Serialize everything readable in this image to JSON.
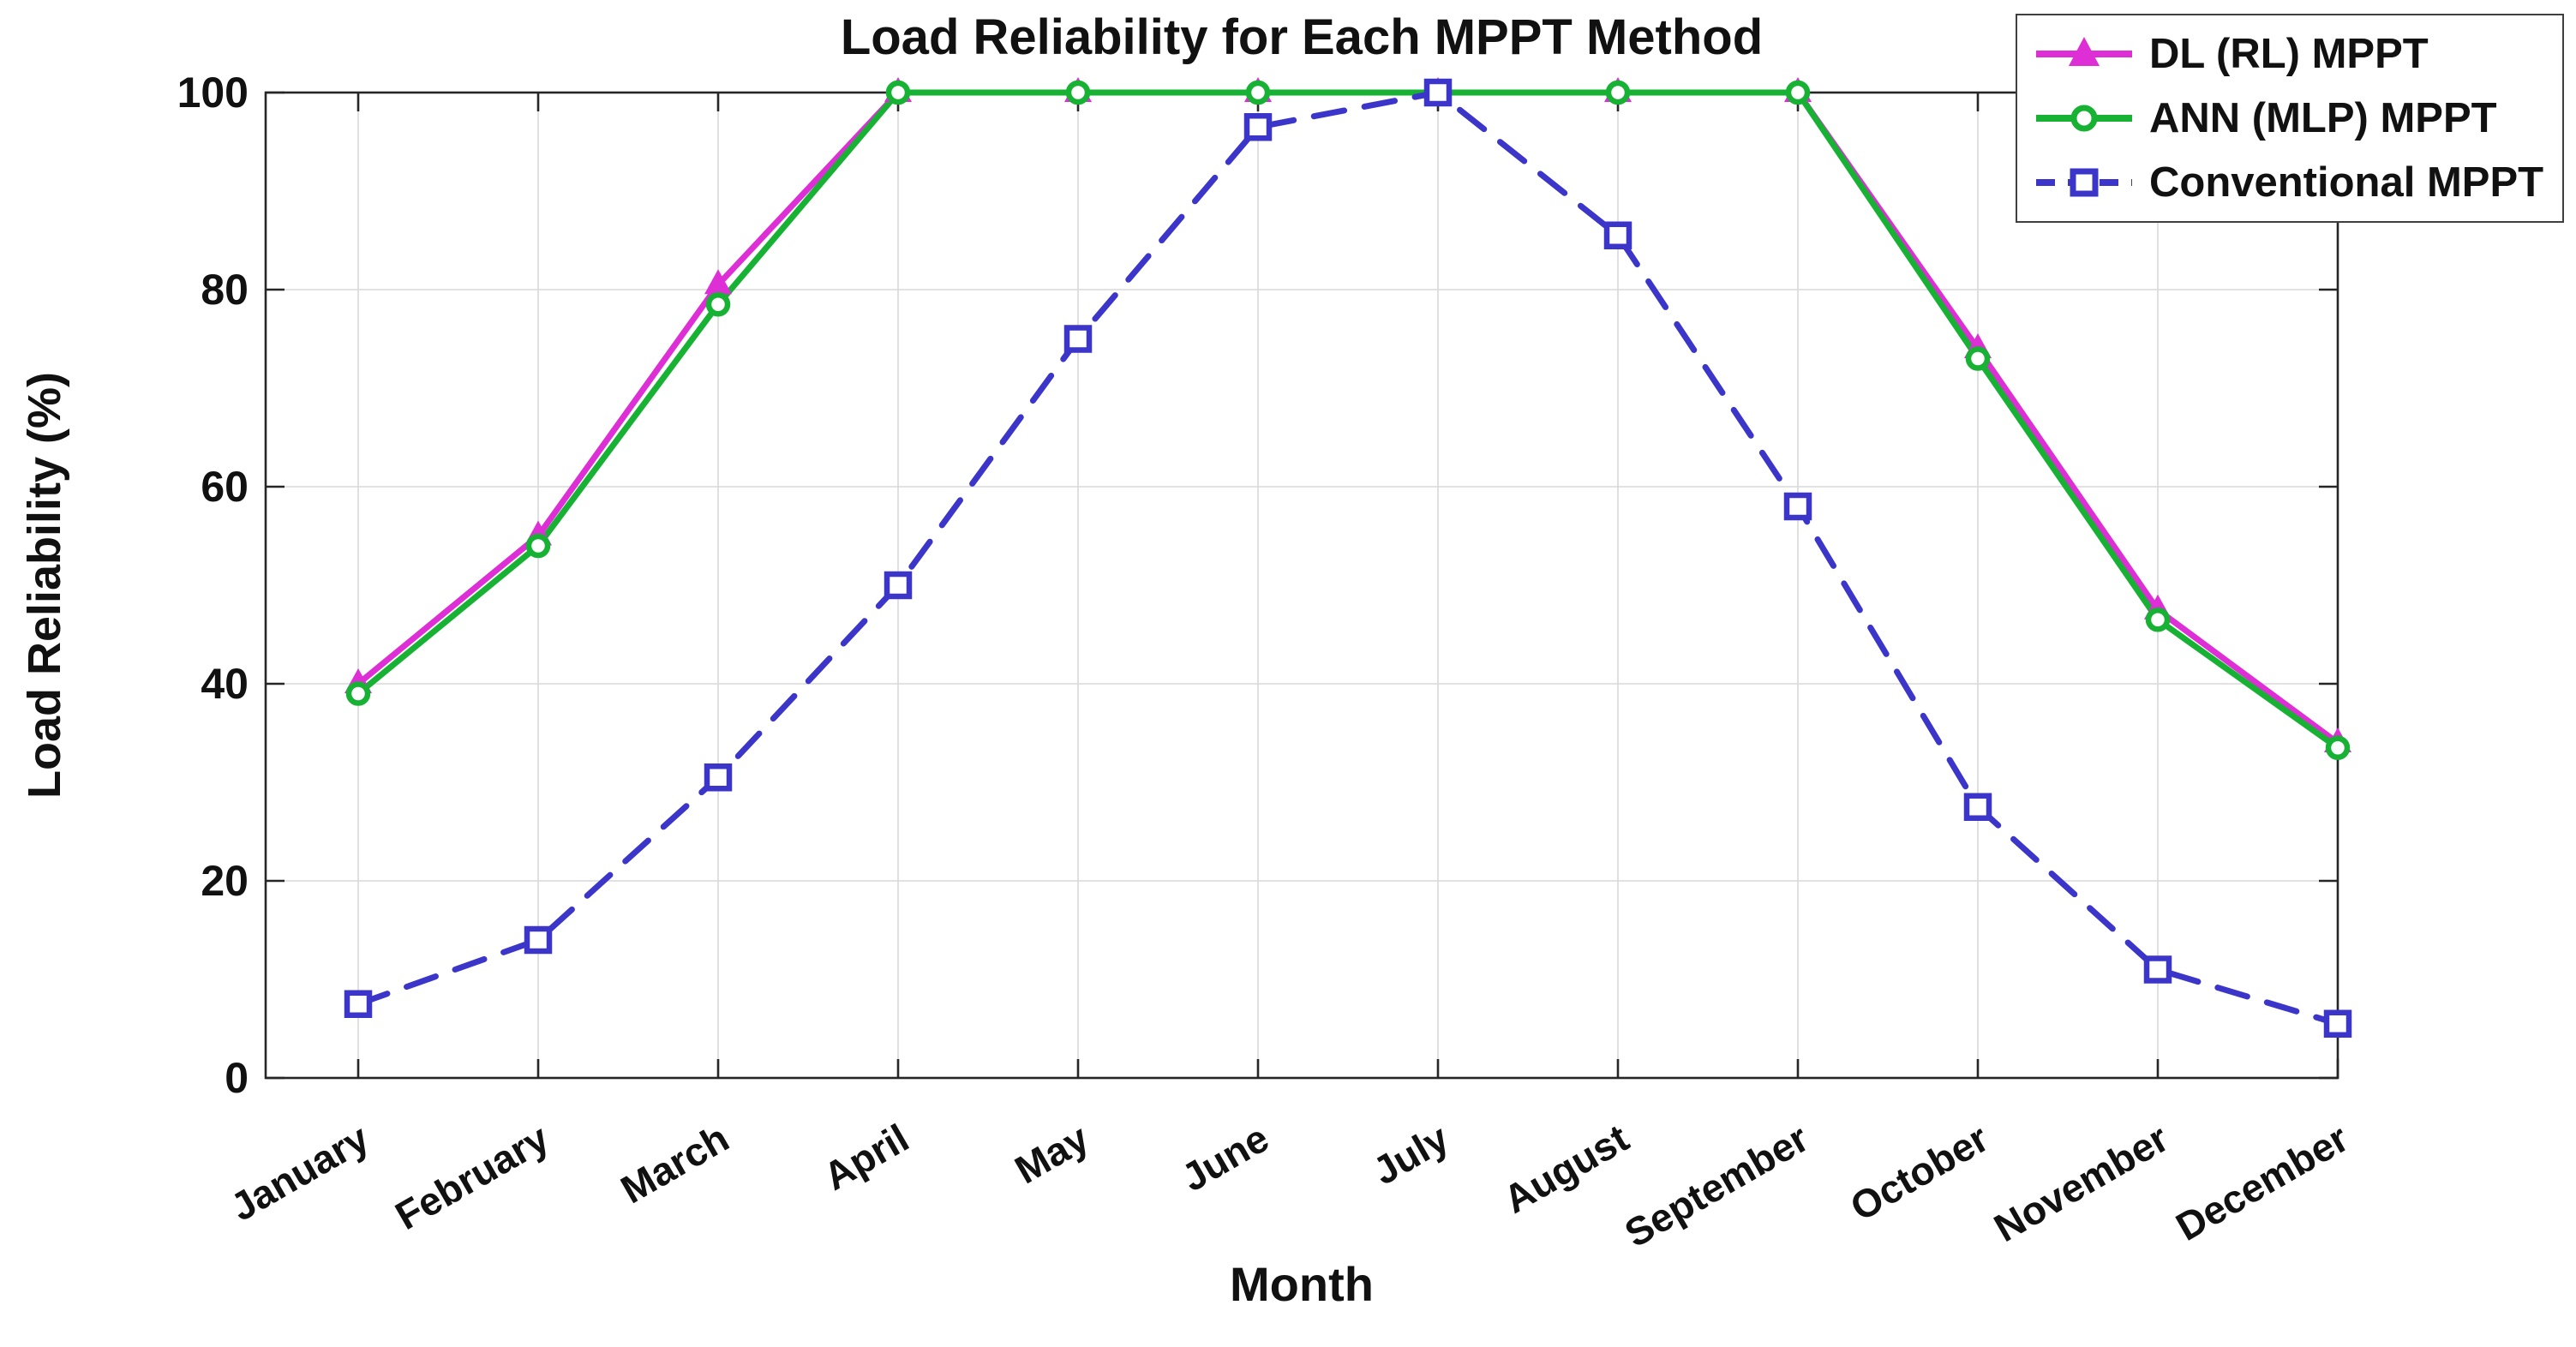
{
  "chart_data": {
    "type": "line",
    "title": "Load Reliability for Each MPPT Method",
    "xlabel": "Month",
    "ylabel": "Load Reliability (%)",
    "ylim": [
      0,
      100
    ],
    "yticks": [
      0,
      20,
      40,
      60,
      80,
      100
    ],
    "grid": true,
    "legend_position": "top-right",
    "categories": [
      "January",
      "February",
      "March",
      "April",
      "May",
      "June",
      "July",
      "August",
      "September",
      "October",
      "November",
      "December"
    ],
    "series": [
      {
        "name": "DL (RL) MPPT",
        "color": "#DE2ED6",
        "marker": "triangle",
        "line_style": "solid",
        "values": [
          40,
          55,
          80.5,
          100,
          100,
          100,
          100,
          100,
          100,
          74,
          47.5,
          34
        ]
      },
      {
        "name": "ANN (MLP) MPPT",
        "color": "#17B233",
        "marker": "circle",
        "line_style": "solid",
        "values": [
          39,
          54,
          78.5,
          100,
          100,
          100,
          100,
          100,
          100,
          73,
          46.5,
          33.5
        ]
      },
      {
        "name": "Conventional MPPT",
        "color": "#3B36C9",
        "marker": "square",
        "line_style": "dashed",
        "values": [
          7.5,
          14,
          30.5,
          50,
          75,
          96.5,
          100,
          85.5,
          58,
          27.5,
          11,
          5.5
        ]
      }
    ],
    "frame_color": "#262626",
    "grid_color": "#d9d9d9",
    "text_color": "#111111"
  }
}
